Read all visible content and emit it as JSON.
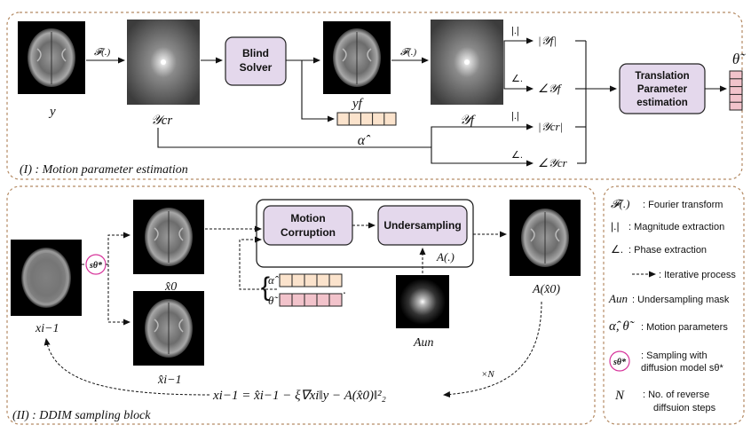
{
  "sections": {
    "motion": "(I) : Motion parameter estimation",
    "ddim": "(II) : DDIM sampling block"
  },
  "top": {
    "y_label": "y",
    "fourier_op": "𝓕(.)",
    "ycr_label": "𝒴cr",
    "blind_solver_line1": "Blind",
    "blind_solver_line2": "Solver",
    "yf_label": "yf",
    "alpha_hat": "α̂",
    "fourier_op2": "𝓕(.)",
    "Yf_label": "𝒴f",
    "abs_op1": "|.|",
    "abs_Yf": "|𝒴f|",
    "angle_op1": "∠.",
    "angle_Yf": "∠𝒴f",
    "abs_op2": "|.|",
    "abs_Ycr": "|𝒴cr|",
    "angle_op2": "∠.",
    "angle_Ycr": "∠𝒴cr",
    "tpe_line1": "Translation",
    "tpe_line2": "Parameter",
    "tpe_line3": "estimation",
    "theta_tilde": "θ̃"
  },
  "bottom": {
    "x_im1": "xi−1",
    "s_theta": "sθ*",
    "x0_hat": "x̂0",
    "xhat_im1": "x̂i−1",
    "motion_corruption_line1": "Motion",
    "motion_corruption_line2": "Corruption",
    "undersampling": "Undersampling",
    "A_op": "A(.)",
    "alpha_hat": "α̂",
    "theta_tilde": "θ̃",
    "A_un": "Aun",
    "A_x0": "A(x̂0)",
    "times_N": "×N",
    "equation": "xi−1 = x̂i−1 − ξ∇xi‖y − A(x̂0)‖²₂"
  },
  "legend": [
    {
      "symbol": "𝓕(.)",
      "text": ": Fourier transform"
    },
    {
      "symbol": "|.|",
      "text": ": Magnitude extraction"
    },
    {
      "symbol": "∠.",
      "text": ": Phase extraction"
    },
    {
      "symbol": "",
      "text": ": Iterative process"
    },
    {
      "symbol": "Aun",
      "text": ": Undersampling mask"
    },
    {
      "symbol": "α̂, θ̃",
      "text": ": Motion parameters"
    },
    {
      "symbol": "sθ*",
      "text": ": Sampling with",
      "text2": "diffusion model sθ*"
    },
    {
      "symbol": "N",
      "text": ":   No. of reverse",
      "text2": "diffsuion steps"
    }
  ],
  "colors": {
    "dashed_border": "#b48a63",
    "process_fill": "#e4d8ec",
    "process_stroke": "#222222",
    "alpha_cell_fill": "#fbe3cc",
    "theta_cell_fill": "#f2c3cb",
    "s_theta_stroke": "#d7359b",
    "image_bg": "#000000"
  }
}
